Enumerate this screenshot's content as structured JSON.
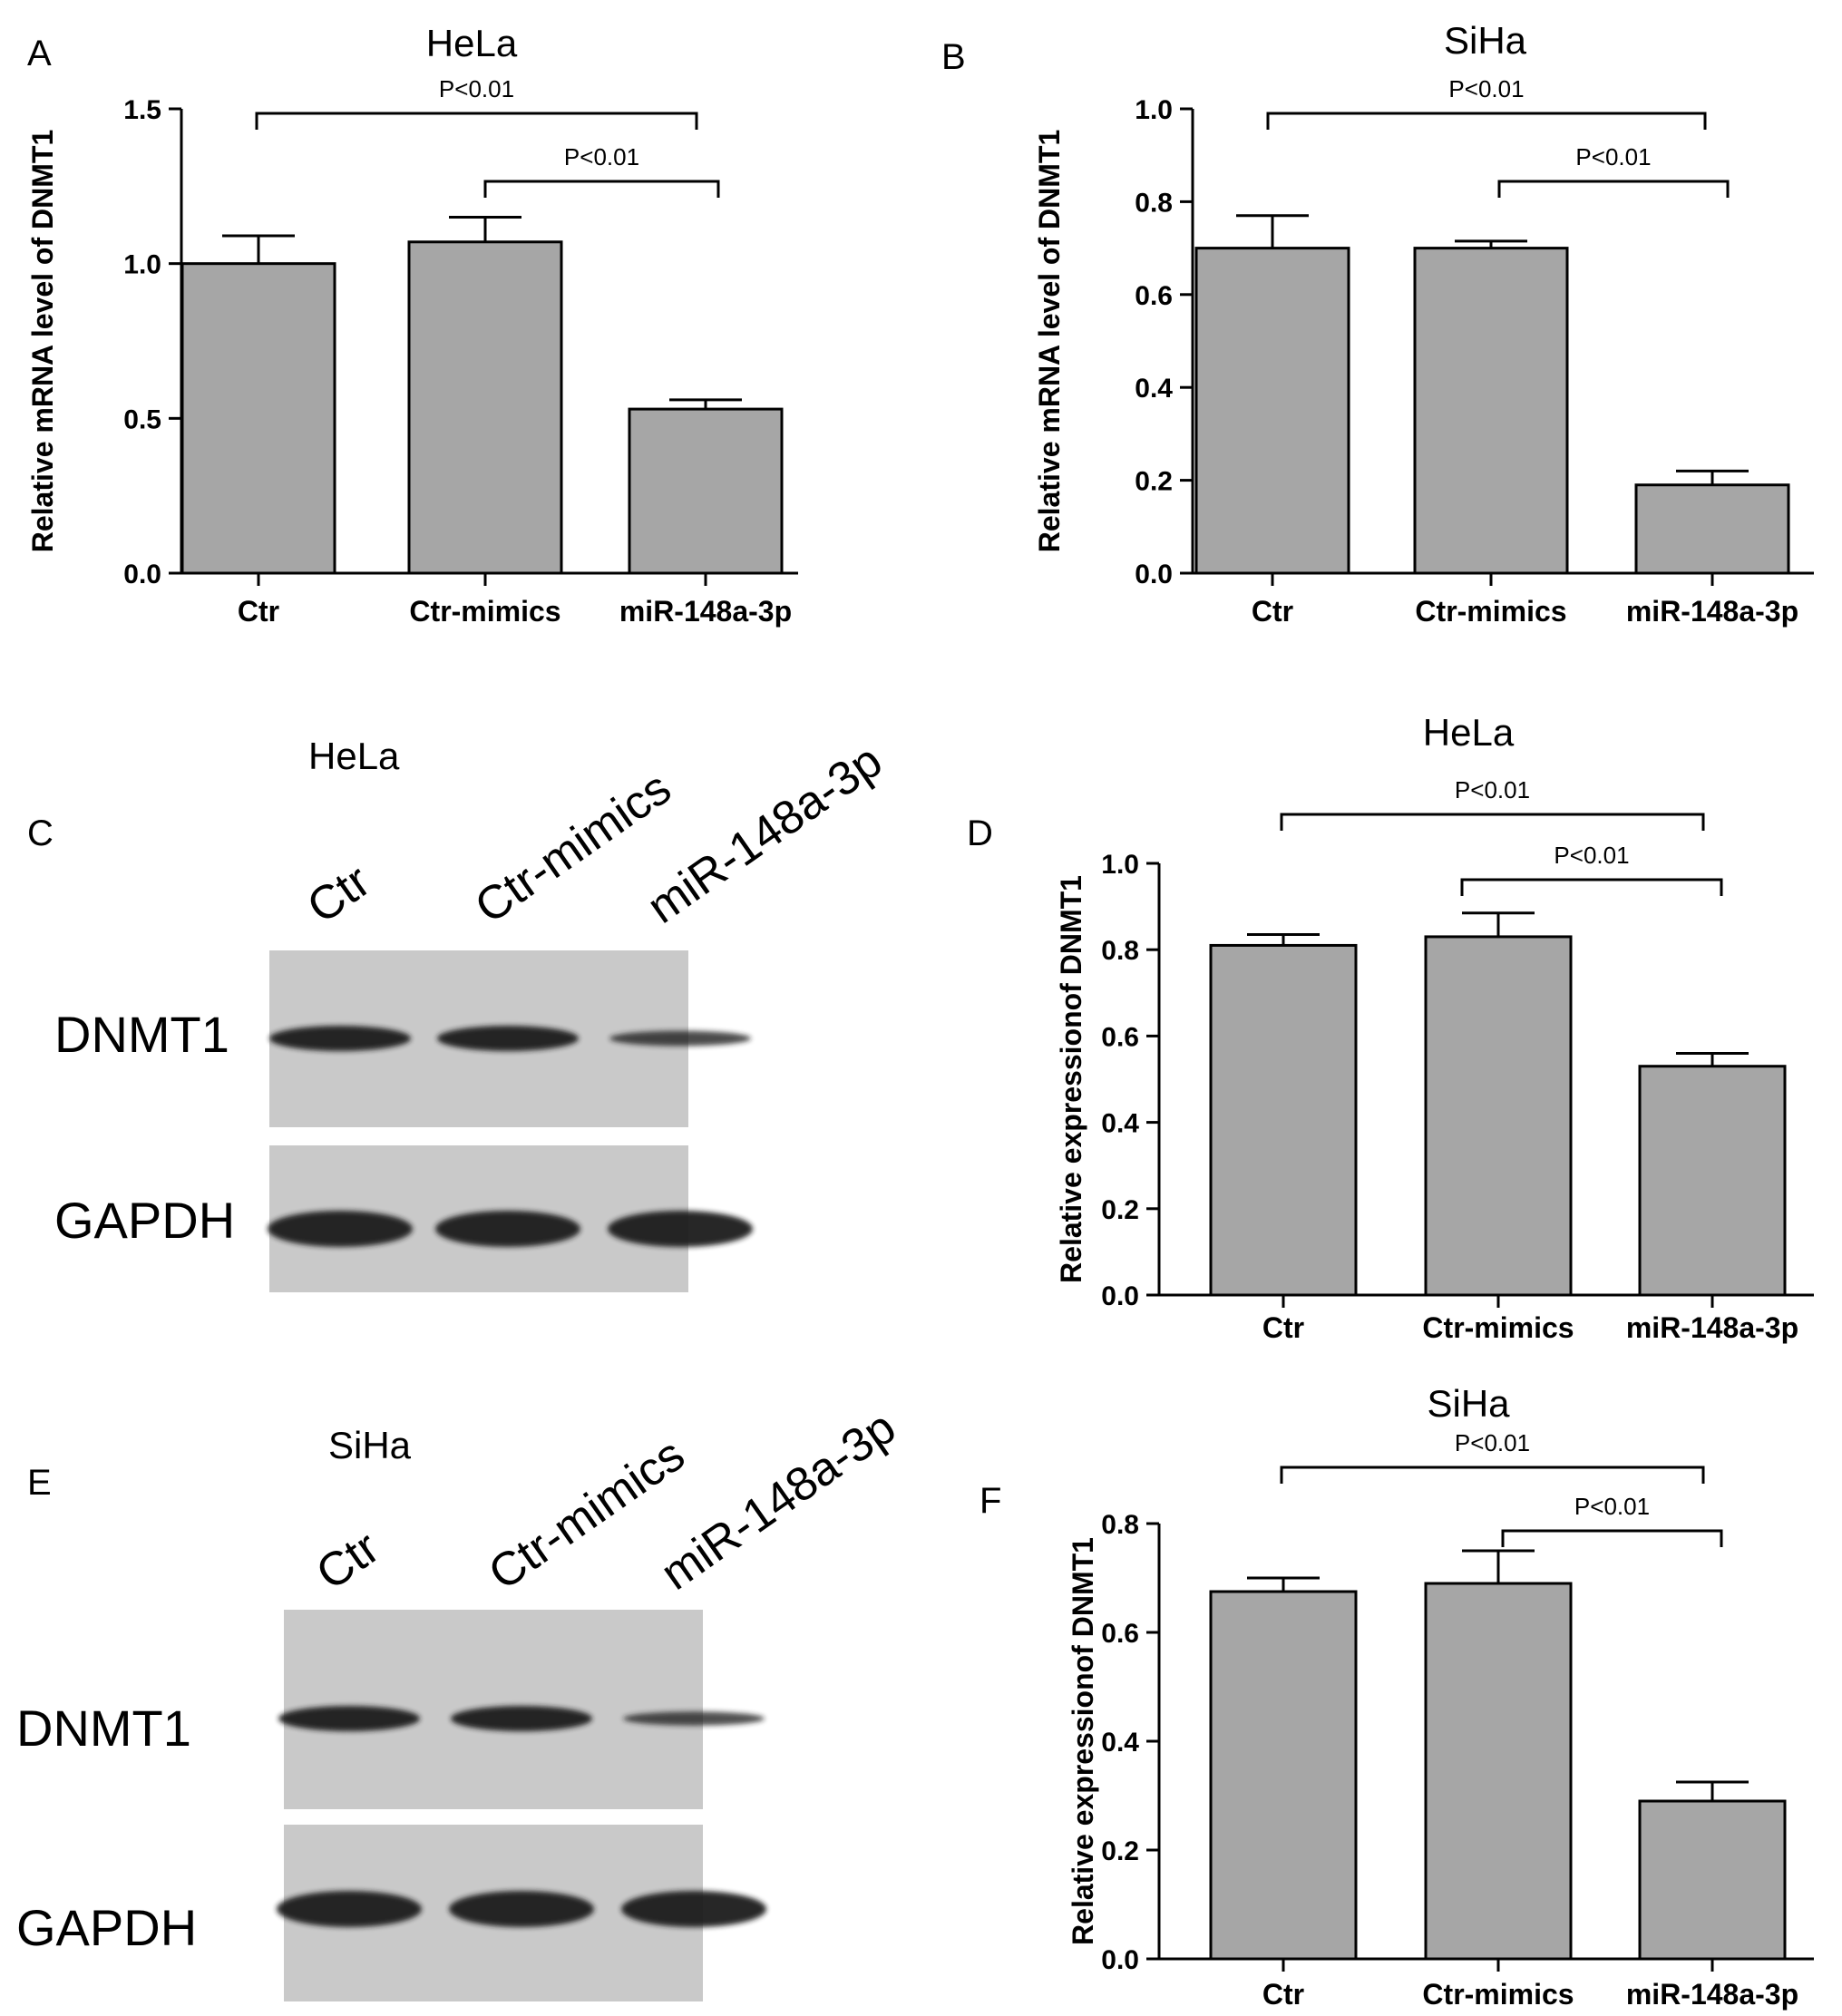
{
  "chart_data": [
    {
      "panel": "A",
      "type": "bar",
      "title": "HeLa",
      "categories": [
        "Ctr",
        "Ctr-mimics",
        "miR-148a-3p"
      ],
      "values": [
        1.0,
        1.07,
        0.53
      ],
      "errors": [
        0.09,
        0.08,
        0.03
      ],
      "ylabel": "Relative mRNA level of DNMT1",
      "ylim": [
        0,
        1.5
      ],
      "yticks": [
        "0.0",
        "0.5",
        "1.0",
        "1.5"
      ],
      "significance": [
        {
          "from": 0,
          "to": 2,
          "label": "P<0.01"
        },
        {
          "from": 1,
          "to": 2,
          "label": "P<0.01"
        }
      ]
    },
    {
      "panel": "B",
      "type": "bar",
      "title": "SiHa",
      "categories": [
        "Ctr",
        "Ctr-mimics",
        "miR-148a-3p"
      ],
      "values": [
        0.7,
        0.7,
        0.19
      ],
      "errors": [
        0.07,
        0.015,
        0.03
      ],
      "ylabel": "Relative mRNA level of DNMT1",
      "ylim": [
        0,
        1.0
      ],
      "yticks": [
        "0.0",
        "0.2",
        "0.4",
        "0.6",
        "0.8",
        "1.0"
      ],
      "significance": [
        {
          "from": 0,
          "to": 2,
          "label": "P<0.01"
        },
        {
          "from": 1,
          "to": 2,
          "label": "P<0.01"
        }
      ]
    },
    {
      "panel": "D",
      "type": "bar",
      "title": "HeLa",
      "categories": [
        "Ctr",
        "Ctr-mimics",
        "miR-148a-3p"
      ],
      "values": [
        0.81,
        0.83,
        0.53
      ],
      "errors": [
        0.025,
        0.055,
        0.03
      ],
      "ylabel": "Relative expressionof DNMT1",
      "ylim": [
        0,
        1.0
      ],
      "yticks": [
        "0.0",
        "0.2",
        "0.4",
        "0.6",
        "0.8",
        "1.0"
      ],
      "significance": [
        {
          "from": 0,
          "to": 2,
          "label": "P<0.01"
        },
        {
          "from": 1,
          "to": 2,
          "label": "P<0.01"
        }
      ]
    },
    {
      "panel": "F",
      "type": "bar",
      "title": "SiHa",
      "categories": [
        "Ctr",
        "Ctr-mimics",
        "miR-148a-3p"
      ],
      "values": [
        0.675,
        0.69,
        0.29
      ],
      "errors": [
        0.025,
        0.06,
        0.035
      ],
      "ylabel": "Relative expressionof DNMT1",
      "ylim": [
        0,
        0.8
      ],
      "yticks": [
        "0.0",
        "0.2",
        "0.4",
        "0.6",
        "0.8"
      ],
      "significance": [
        {
          "from": 0,
          "to": 2,
          "label": "P<0.01"
        },
        {
          "from": 1,
          "to": 2,
          "label": "P<0.01"
        }
      ]
    }
  ],
  "blots": [
    {
      "panel": "C",
      "title": "HeLa",
      "lanes": [
        "Ctr",
        "Ctr-mimics",
        "miR-148a-3p"
      ],
      "rows": [
        {
          "label": "DNMT1"
        },
        {
          "label": "GAPDH"
        }
      ]
    },
    {
      "panel": "E",
      "title": "SiHa",
      "lanes": [
        "Ctr",
        "Ctr-mimics",
        "miR-148a-3p"
      ],
      "rows": [
        {
          "label": "DNMT1"
        },
        {
          "label": "GAPDH"
        }
      ]
    }
  ],
  "colors": {
    "bar_fill": "#a6a6a6",
    "axis": "#000000",
    "blot_bg": "#c9c9c9",
    "band": "#1a1a1a"
  }
}
